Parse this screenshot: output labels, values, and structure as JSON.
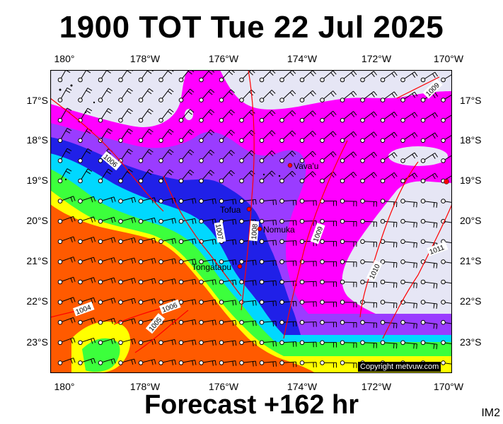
{
  "title": "1900 TOT Tue 22 Jul 2025",
  "footer": "Forecast +162 hr",
  "corner_label": "IM2",
  "copyright": "Copyright metvuw.com",
  "lon_labels": [
    "180°",
    "178°W",
    "176°W",
    "174°W",
    "172°W",
    "170°W"
  ],
  "lat_labels": [
    "17°S",
    "18°S",
    "19°S",
    "20°S",
    "21°S",
    "22°S",
    "23°S"
  ],
  "places": [
    {
      "name": "Vava'u"
    },
    {
      "name": "Tofua"
    },
    {
      "name": "Nomuka"
    },
    {
      "name": "Tongatapu"
    }
  ],
  "isobar_labels": [
    "1006",
    "1007",
    "1008",
    "1009",
    "1010",
    "1011",
    "1004",
    "1006",
    "1005",
    "1009"
  ],
  "colors": {
    "calm": "#e6e6f5",
    "magenta": "#ff00ff",
    "purple": "#9a3cff",
    "blue": "#2020e8",
    "cyan": "#00d8ff",
    "green": "#3cff3c",
    "yellow": "#ffff00",
    "orange": "#ff5a00",
    "isobar": "#ff0000"
  }
}
